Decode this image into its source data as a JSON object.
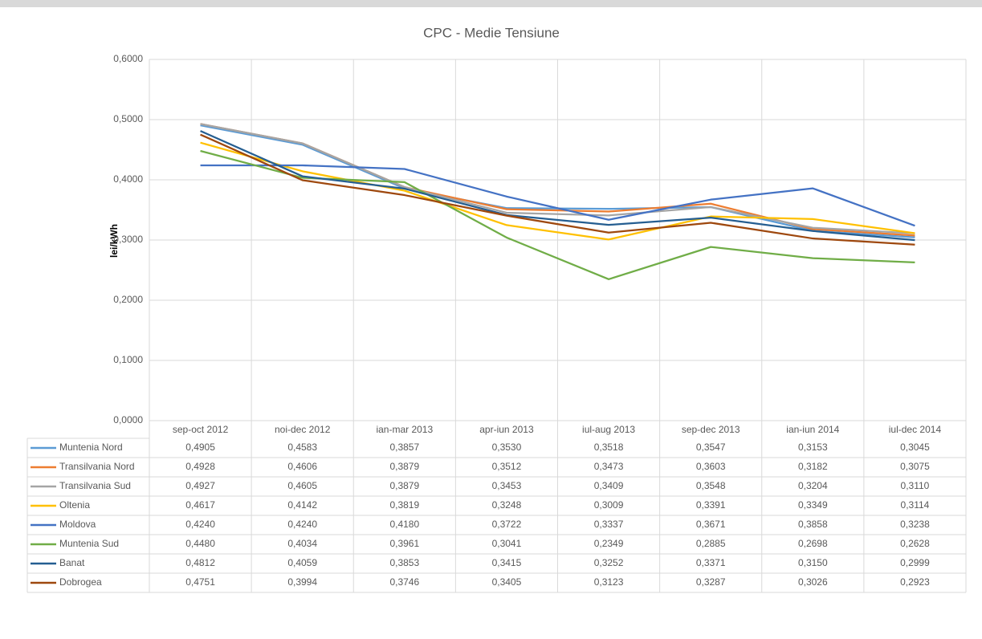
{
  "chart_data": {
    "type": "line",
    "title": "CPC - Medie Tensiune",
    "y_label": "lei/kWh",
    "categories": [
      "sep-oct 2012",
      "noi-dec 2012",
      "ian-mar 2013",
      "apr-iun 2013",
      "iul-aug 2013",
      "sep-dec 2013",
      "ian-iun 2014",
      "iul-dec 2014"
    ],
    "ylim": [
      0,
      0.6
    ],
    "yticks": [
      {
        "value": 0,
        "label": "0,0000"
      },
      {
        "value": 0.1,
        "label": "0,1000"
      },
      {
        "value": 0.2,
        "label": "0,2000"
      },
      {
        "value": 0.3,
        "label": "0,3000"
      },
      {
        "value": 0.4,
        "label": "0,4000"
      },
      {
        "value": 0.5,
        "label": "0,5000"
      },
      {
        "value": 0.6,
        "label": "0,6000"
      }
    ],
    "grid": true,
    "series": [
      {
        "name": "Muntenia Nord",
        "color": "#5b9bd5",
        "values": [
          0.4905,
          0.4583,
          0.3857,
          0.353,
          0.3518,
          0.3547,
          0.3153,
          0.3045
        ],
        "value_labels": [
          "0,4905",
          "0,4583",
          "0,3857",
          "0,3530",
          "0,3518",
          "0,3547",
          "0,3153",
          "0,3045"
        ]
      },
      {
        "name": "Transilvania Nord",
        "color": "#ed7d31",
        "values": [
          0.4928,
          0.4606,
          0.3879,
          0.3512,
          0.3473,
          0.3603,
          0.3182,
          0.3075
        ],
        "value_labels": [
          "0,4928",
          "0,4606",
          "0,3879",
          "0,3512",
          "0,3473",
          "0,3603",
          "0,3182",
          "0,3075"
        ]
      },
      {
        "name": "Transilvania Sud",
        "color": "#a5a5a5",
        "values": [
          0.4927,
          0.4605,
          0.3879,
          0.3453,
          0.3409,
          0.3548,
          0.3204,
          0.311
        ],
        "value_labels": [
          "0,4927",
          "0,4605",
          "0,3879",
          "0,3453",
          "0,3409",
          "0,3548",
          "0,3204",
          "0,3110"
        ]
      },
      {
        "name": "Oltenia",
        "color": "#ffc000",
        "values": [
          0.4617,
          0.4142,
          0.3819,
          0.3248,
          0.3009,
          0.3391,
          0.3349,
          0.3114
        ],
        "value_labels": [
          "0,4617",
          "0,4142",
          "0,3819",
          "0,3248",
          "0,3009",
          "0,3391",
          "0,3349",
          "0,3114"
        ]
      },
      {
        "name": "Moldova",
        "color": "#4472c4",
        "values": [
          0.424,
          0.424,
          0.418,
          0.3722,
          0.3337,
          0.3671,
          0.3858,
          0.3238
        ],
        "value_labels": [
          "0,4240",
          "0,4240",
          "0,4180",
          "0,3722",
          "0,3337",
          "0,3671",
          "0,3858",
          "0,3238"
        ]
      },
      {
        "name": "Muntenia Sud",
        "color": "#70ad47",
        "values": [
          0.448,
          0.4034,
          0.3961,
          0.3041,
          0.2349,
          0.2885,
          0.2698,
          0.2628
        ],
        "value_labels": [
          "0,4480",
          "0,4034",
          "0,3961",
          "0,3041",
          "0,2349",
          "0,2885",
          "0,2698",
          "0,2628"
        ]
      },
      {
        "name": "Banat",
        "color": "#255e91",
        "values": [
          0.4812,
          0.4059,
          0.3853,
          0.3415,
          0.3252,
          0.3371,
          0.315,
          0.2999
        ],
        "value_labels": [
          "0,4812",
          "0,4059",
          "0,3853",
          "0,3415",
          "0,3252",
          "0,3371",
          "0,3150",
          "0,2999"
        ]
      },
      {
        "name": "Dobrogea",
        "color": "#9e480e",
        "values": [
          0.4751,
          0.3994,
          0.3746,
          0.3405,
          0.3123,
          0.3287,
          0.3026,
          0.2923
        ],
        "value_labels": [
          "0,4751",
          "0,3994",
          "0,3746",
          "0,3405",
          "0,3123",
          "0,3287",
          "0,3026",
          "0,2923"
        ]
      }
    ]
  }
}
